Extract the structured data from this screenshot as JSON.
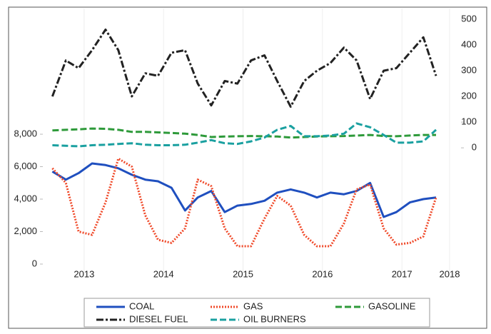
{
  "chart_data": {
    "type": "line",
    "x": [
      2013.1,
      2013.27,
      2013.43,
      2013.6,
      2013.77,
      2013.93,
      2014.1,
      2014.27,
      2014.43,
      2014.6,
      2014.77,
      2014.93,
      2015.1,
      2015.27,
      2015.43,
      2015.6,
      2015.77,
      2015.93,
      2016.1,
      2016.27,
      2016.43,
      2016.6,
      2016.77,
      2016.93,
      2017.1,
      2017.27,
      2017.43,
      2017.6,
      2017.77,
      2017.93
    ],
    "series": [
      {
        "name": "COAL",
        "color": "#1f4fbf",
        "style": "solid",
        "values": [
          5700,
          5200,
          5600,
          6200,
          6100,
          5900,
          5500,
          5200,
          5100,
          4700,
          3300,
          4100,
          4500,
          3200,
          3600,
          3700,
          3900,
          4400,
          4600,
          4400,
          4100,
          4400,
          4300,
          4500,
          5000,
          2900,
          3200,
          3800,
          4000,
          4100
        ]
      },
      {
        "name": "GAS",
        "color": "#f04a2a",
        "style": "dotted",
        "values": [
          5900,
          5000,
          2000,
          1800,
          3800,
          6500,
          6000,
          3000,
          1500,
          1300,
          2200,
          5200,
          4800,
          2200,
          1100,
          1100,
          2800,
          4200,
          3600,
          1800,
          1100,
          1100,
          2500,
          4600,
          4900,
          2200,
          1200,
          1300,
          1700,
          4100
        ]
      },
      {
        "name": "GASOLINE",
        "color": "#2e9a3a",
        "style": "dashed",
        "axis": "y2",
        "values": [
          68,
          70,
          72,
          75,
          74,
          70,
          62,
          62,
          60,
          58,
          55,
          50,
          42,
          44,
          45,
          46,
          45,
          44,
          40,
          42,
          44,
          45,
          46,
          48,
          50,
          46,
          45,
          48,
          50,
          50
        ]
      },
      {
        "name": "DIESEL FUEL",
        "color": "#222222",
        "style": "dashdot",
        "axis": "y2",
        "values": [
          200,
          340,
          310,
          380,
          460,
          380,
          200,
          290,
          280,
          370,
          380,
          250,
          165,
          260,
          250,
          340,
          360,
          260,
          160,
          260,
          300,
          330,
          390,
          340,
          190,
          300,
          310,
          370,
          430,
          280
        ]
      },
      {
        "name": "OIL BURNERS",
        "color": "#1aa0a0",
        "style": "dashed",
        "axis": "y2",
        "values": [
          10,
          8,
          6,
          10,
          12,
          15,
          18,
          12,
          10,
          10,
          12,
          20,
          30,
          18,
          15,
          25,
          40,
          70,
          85,
          45,
          45,
          48,
          55,
          95,
          80,
          50,
          20,
          20,
          25,
          70
        ]
      }
    ],
    "xlim": [
      2012.98,
      2018.28
    ],
    "xticks": [
      {
        "value": 2013.5,
        "label": "2013"
      },
      {
        "value": 2014.5,
        "label": "2014"
      },
      {
        "value": 2015.5,
        "label": "2015"
      },
      {
        "value": 2016.5,
        "label": "2016"
      },
      {
        "value": 2017.5,
        "label": "2017"
      },
      {
        "value": 2018.1,
        "label": "2018"
      }
    ],
    "ylim": [
      -660,
      15740
    ],
    "yticks": [
      0,
      {
        "value": 2000,
        "label": "2,000"
      },
      {
        "value": 4000,
        "label": "4,000"
      },
      {
        "value": 6000,
        "label": "6,000"
      },
      {
        "value": 8000,
        "label": "8,000"
      }
    ],
    "y2lim": [
      -494,
      542
    ],
    "y2ticks": [
      0,
      100,
      200,
      300,
      400,
      500
    ],
    "legend": "bottom"
  }
}
